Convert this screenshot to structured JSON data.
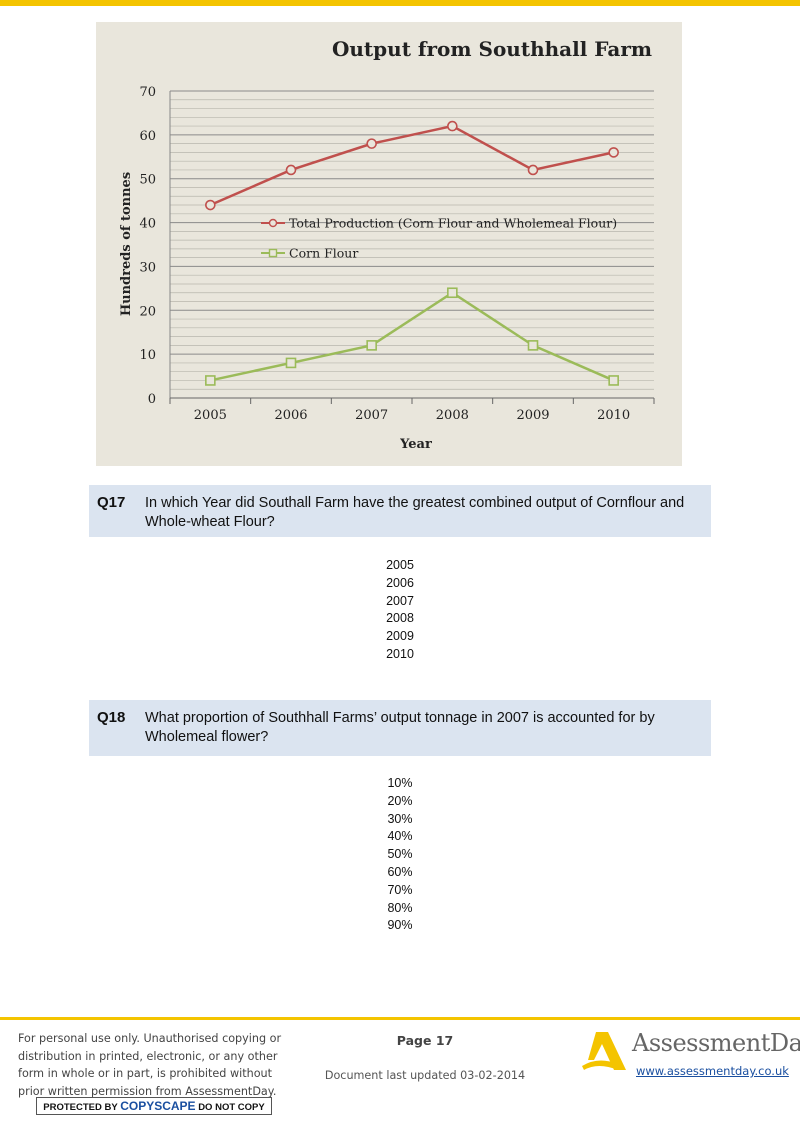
{
  "chart_data": {
    "type": "line",
    "title": "Output from Southhall Farm",
    "xlabel": "Year",
    "ylabel": "Hundreds of tonnes",
    "categories": [
      "2005",
      "2006",
      "2007",
      "2008",
      "2009",
      "2010"
    ],
    "ylim": [
      0,
      70
    ],
    "yticks": [
      0,
      10,
      20,
      30,
      40,
      50,
      60,
      70
    ],
    "grid": true,
    "legend_position": "center-left",
    "series": [
      {
        "name": "Total Production (Corn Flour and Wholemeal Flour)",
        "values": [
          44,
          52,
          58,
          62,
          52,
          56
        ],
        "color": "#c0504d",
        "marker": "circle"
      },
      {
        "name": "Corn Flour",
        "values": [
          4,
          8,
          12,
          24,
          12,
          4
        ],
        "color": "#9bbb59",
        "marker": "square"
      }
    ]
  },
  "questions": [
    {
      "number": "Q17",
      "text": "In which Year did Southall Farm have the greatest combined output of Cornflour and Whole-wheat Flour?",
      "options": [
        "2005",
        "2006",
        "2007",
        "2008",
        "2009",
        "2010"
      ]
    },
    {
      "number": "Q18",
      "text": "What proportion of Southhall Farms’ output tonnage in 2007 is accounted for by Wholemeal flower?",
      "options": [
        "10%",
        "20%",
        "30%",
        "40%",
        "50%",
        "60%",
        "70%",
        "80%",
        "90%"
      ]
    }
  ],
  "footer": {
    "disclaimer": "For personal use only. Unauthorised copying or distribution in printed, electronic, or any other form in whole or in part, is prohibited without prior written permission from AssessmentDay.",
    "copyscape_pre": "PROTECTED BY",
    "copyscape_brand": "COPYSCAPE",
    "copyscape_post": "DO NOT COPY",
    "page_label": "Page 17",
    "updated": "Document last updated 03-02-2014",
    "logo_text": "AssessmentDay",
    "website": "www.assessmentday.co.uk"
  },
  "colors": {
    "accent_yellow": "#f4c400",
    "question_band": "#dbe4f0",
    "chart_background": "#e9e6dc"
  }
}
